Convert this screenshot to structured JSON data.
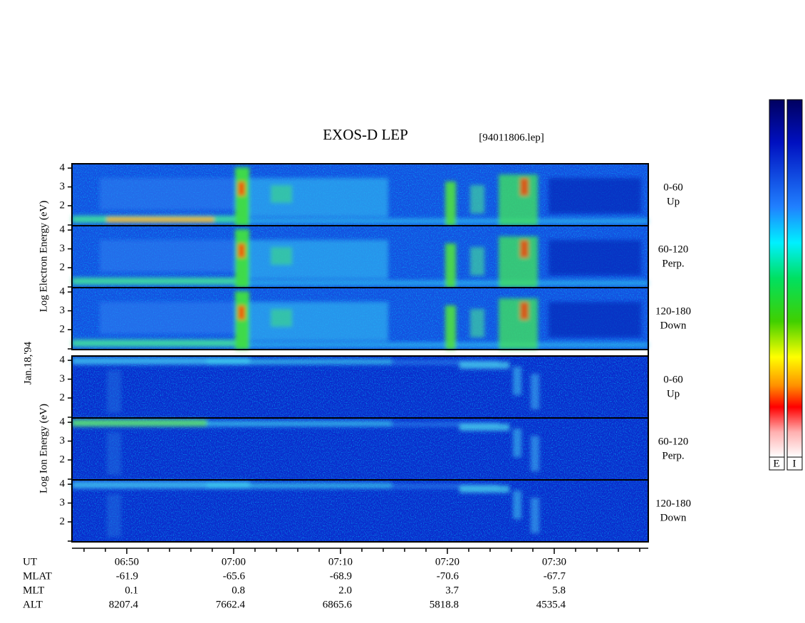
{
  "chart_data": {
    "type": "spectrogram",
    "title": "EXOS-D LEP",
    "subtitle": "[94011806.lep]",
    "date_label": "Jan.18,'94",
    "group_labels": [
      "Log  Electron  Energy  (eV)",
      "Log  Ion  Energy  (eV)"
    ],
    "panels": [
      {
        "label": [
          "0-60",
          "Up"
        ]
      },
      {
        "label": [
          "60-120",
          "Perp."
        ]
      },
      {
        "label": [
          "120-180",
          "Down"
        ]
      },
      {
        "label": [
          "0-60",
          "Up"
        ]
      },
      {
        "label": [
          "60-120",
          "Perp."
        ]
      },
      {
        "label": [
          "120-180",
          "Down"
        ]
      }
    ],
    "ylim": [
      0.94,
      4.23
    ],
    "yticks": [
      2,
      3,
      4
    ],
    "xlim": [
      404.87,
      458.8
    ],
    "xticks": [
      {
        "value": 410,
        "label": "06:50"
      },
      {
        "value": 420,
        "label": "07:00"
      },
      {
        "value": 430,
        "label": "07:10"
      },
      {
        "value": 440,
        "label": "07:20"
      },
      {
        "value": 450,
        "label": "07:30"
      }
    ],
    "xminorticks": [
      406,
      408,
      412,
      414,
      416,
      418,
      422,
      424,
      426,
      428,
      432,
      434,
      436,
      438,
      442,
      444,
      446,
      448,
      452,
      454,
      456,
      458
    ],
    "ephemeris": [
      {
        "name": "UT",
        "values": []
      },
      {
        "name": "MLAT",
        "values": [
          "-61.9",
          "-65.6",
          "-68.9",
          "-70.6",
          "-67.7"
        ]
      },
      {
        "name": "MLT",
        "values": [
          "0.1",
          "0.8",
          "2.0",
          "3.7",
          "5.8"
        ]
      },
      {
        "name": "ALT",
        "values": [
          "8207.4",
          "7662.4",
          "6865.6",
          "5818.8",
          "4535.4"
        ]
      }
    ],
    "colorbar_labels": [
      "E",
      "I"
    ]
  }
}
